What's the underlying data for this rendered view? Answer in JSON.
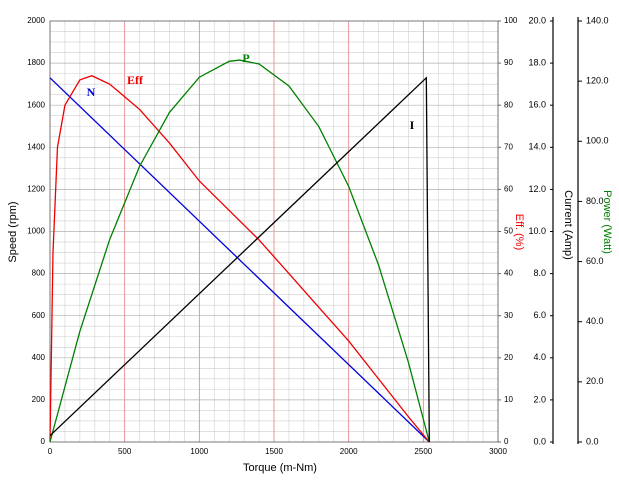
{
  "chart_data": {
    "type": "line",
    "x_label": "Torque (m-Nm)",
    "y_label": "Speed (rpm)",
    "y2_label": "Eff. (%)",
    "y3_label": "Current (Amp)",
    "y4_label": "Power (Watt)",
    "xlim": [
      0,
      3000
    ],
    "xticks": [
      0,
      500,
      1000,
      1500,
      2000,
      2500,
      3000
    ],
    "ylim": [
      0,
      2000
    ],
    "yticks": [
      0,
      200,
      400,
      600,
      800,
      1000,
      1200,
      1400,
      1600,
      1800,
      2000
    ],
    "y2lim": [
      0,
      100
    ],
    "y2ticks": [
      0,
      10,
      20,
      30,
      40,
      50,
      60,
      70,
      80,
      90,
      100
    ],
    "y3lim": [
      0,
      20
    ],
    "y3ticks": [
      {
        "value": 0,
        "label": "0.0"
      },
      {
        "value": 2,
        "label": "2.0"
      },
      {
        "value": 4,
        "label": "4.0"
      },
      {
        "value": 6,
        "label": "6.0"
      },
      {
        "value": 8,
        "label": "8.0"
      },
      {
        "value": 10,
        "label": "10.0"
      },
      {
        "value": 12,
        "label": "12.0"
      },
      {
        "value": 14,
        "label": "14.0"
      },
      {
        "value": 16,
        "label": "16.0"
      },
      {
        "value": 18,
        "label": "18.0"
      },
      {
        "value": 20,
        "label": "20.0"
      }
    ],
    "y4lim": [
      0,
      140
    ],
    "y4ticks": [
      {
        "value": 0,
        "label": "0.0"
      },
      {
        "value": 20,
        "label": "20.0"
      },
      {
        "value": 40,
        "label": "40.0"
      },
      {
        "value": 60,
        "label": "60.0"
      },
      {
        "value": 80,
        "label": "80.0"
      },
      {
        "value": 100,
        "label": "100.0"
      },
      {
        "value": 120,
        "label": "120.0"
      },
      {
        "value": 140,
        "label": "140.0"
      }
    ],
    "grid": true,
    "series": [
      {
        "name": "N",
        "color": "#0000dd",
        "axis": "y",
        "x": [
          0,
          2540
        ],
        "values": [
          1730,
          0
        ]
      },
      {
        "name": "Eff",
        "color": "#ee0000",
        "axis": "y2",
        "x": [
          0,
          20,
          50,
          100,
          200,
          280,
          400,
          600,
          800,
          1000,
          1200,
          1400,
          1600,
          1800,
          2000,
          2200,
          2400,
          2540
        ],
        "values": [
          0,
          45,
          70,
          80,
          86,
          87,
          85,
          79,
          71,
          62,
          55,
          48,
          40,
          32,
          24,
          15,
          6,
          0
        ]
      },
      {
        "name": "P",
        "color": "#008000",
        "axis": "y4",
        "x": [
          0,
          200,
          400,
          600,
          800,
          1000,
          1200,
          1270,
          1400,
          1600,
          1800,
          2000,
          2200,
          2400,
          2540
        ],
        "values": [
          0,
          36.8,
          67.4,
          91.7,
          109.6,
          121.3,
          126.6,
          127,
          125.7,
          118.4,
          104.9,
          85,
          58.9,
          26.5,
          0
        ]
      },
      {
        "name": "I",
        "color": "#000000",
        "axis": "y3",
        "x": [
          0,
          2520,
          2540
        ],
        "values": [
          0.3,
          17.3,
          0
        ]
      }
    ]
  }
}
